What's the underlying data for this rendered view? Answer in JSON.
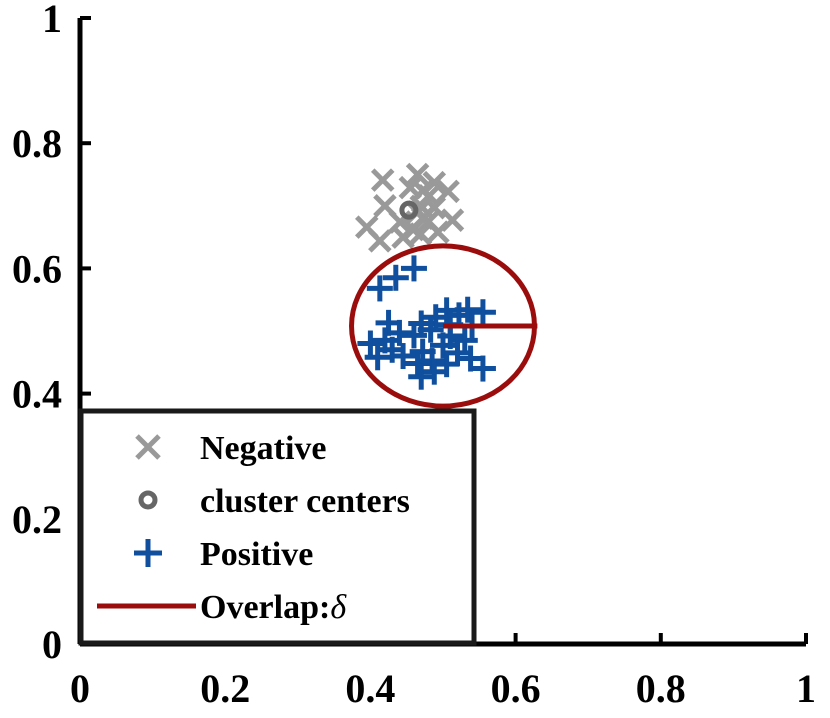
{
  "chart_data": {
    "type": "scatter",
    "title": "",
    "xlabel": "",
    "ylabel": "",
    "xlim": [
      0,
      1
    ],
    "ylim": [
      0,
      1
    ],
    "x_ticks": [
      "0",
      "0.2",
      "0.4",
      "0.6",
      "0.8",
      "1"
    ],
    "y_ticks": [
      "0",
      "0.2",
      "0.4",
      "0.6",
      "0.8",
      "1"
    ],
    "legend_position": "bottom-left",
    "series": [
      {
        "name": "Negative",
        "marker": "x",
        "color": "#999999",
        "points": [
          [
            0.417,
            0.741
          ],
          [
            0.465,
            0.75
          ],
          [
            0.488,
            0.737
          ],
          [
            0.455,
            0.729
          ],
          [
            0.472,
            0.724
          ],
          [
            0.507,
            0.723
          ],
          [
            0.481,
            0.716
          ],
          [
            0.42,
            0.7
          ],
          [
            0.47,
            0.699
          ],
          [
            0.488,
            0.697
          ],
          [
            0.465,
            0.69
          ],
          [
            0.472,
            0.68
          ],
          [
            0.513,
            0.677
          ],
          [
            0.48,
            0.675
          ],
          [
            0.441,
            0.674
          ],
          [
            0.395,
            0.666
          ],
          [
            0.459,
            0.662
          ],
          [
            0.493,
            0.658
          ],
          [
            0.469,
            0.655
          ],
          [
            0.445,
            0.65
          ],
          [
            0.413,
            0.644
          ]
        ]
      },
      {
        "name": "cluster centers",
        "marker": "o",
        "color": "#666666",
        "points": [
          [
            0.453,
            0.693
          ]
        ]
      },
      {
        "name": "Positive",
        "marker": "+",
        "color": "#0f4f9e",
        "points": [
          [
            0.46,
            0.6
          ],
          [
            0.435,
            0.585
          ],
          [
            0.413,
            0.568
          ],
          [
            0.534,
            0.534
          ],
          [
            0.505,
            0.533
          ],
          [
            0.555,
            0.53
          ],
          [
            0.522,
            0.525
          ],
          [
            0.49,
            0.522
          ],
          [
            0.425,
            0.513
          ],
          [
            0.47,
            0.512
          ],
          [
            0.51,
            0.51
          ],
          [
            0.54,
            0.508
          ],
          [
            0.483,
            0.502
          ],
          [
            0.44,
            0.497
          ],
          [
            0.46,
            0.493
          ],
          [
            0.51,
            0.492
          ],
          [
            0.42,
            0.485
          ],
          [
            0.53,
            0.485
          ],
          [
            0.4,
            0.48
          ],
          [
            0.5,
            0.477
          ],
          [
            0.43,
            0.47
          ],
          [
            0.472,
            0.467
          ],
          [
            0.52,
            0.465
          ],
          [
            0.445,
            0.46
          ],
          [
            0.41,
            0.458
          ],
          [
            0.538,
            0.456
          ],
          [
            0.485,
            0.452
          ],
          [
            0.465,
            0.448
          ],
          [
            0.505,
            0.447
          ],
          [
            0.555,
            0.44
          ],
          [
            0.488,
            0.435
          ],
          [
            0.47,
            0.427
          ]
        ]
      },
      {
        "name": "Overlap:δ",
        "marker": "line",
        "color": "#9b0d0d",
        "points": [
          [
            0.5,
            0.508
          ],
          [
            0.63,
            0.508
          ]
        ]
      }
    ],
    "circle": {
      "color": "#9b0d0d",
      "center": [
        0.5,
        0.508
      ],
      "radius_x": 0.126,
      "radius_y": 0.128
    },
    "legend": [
      {
        "label_prefix": "Negative",
        "label_italic": ""
      },
      {
        "label_prefix": "cluster centers",
        "label_italic": ""
      },
      {
        "label_prefix": "Positive",
        "label_italic": ""
      },
      {
        "label_prefix": "Overlap:",
        "label_italic": "δ"
      }
    ]
  }
}
